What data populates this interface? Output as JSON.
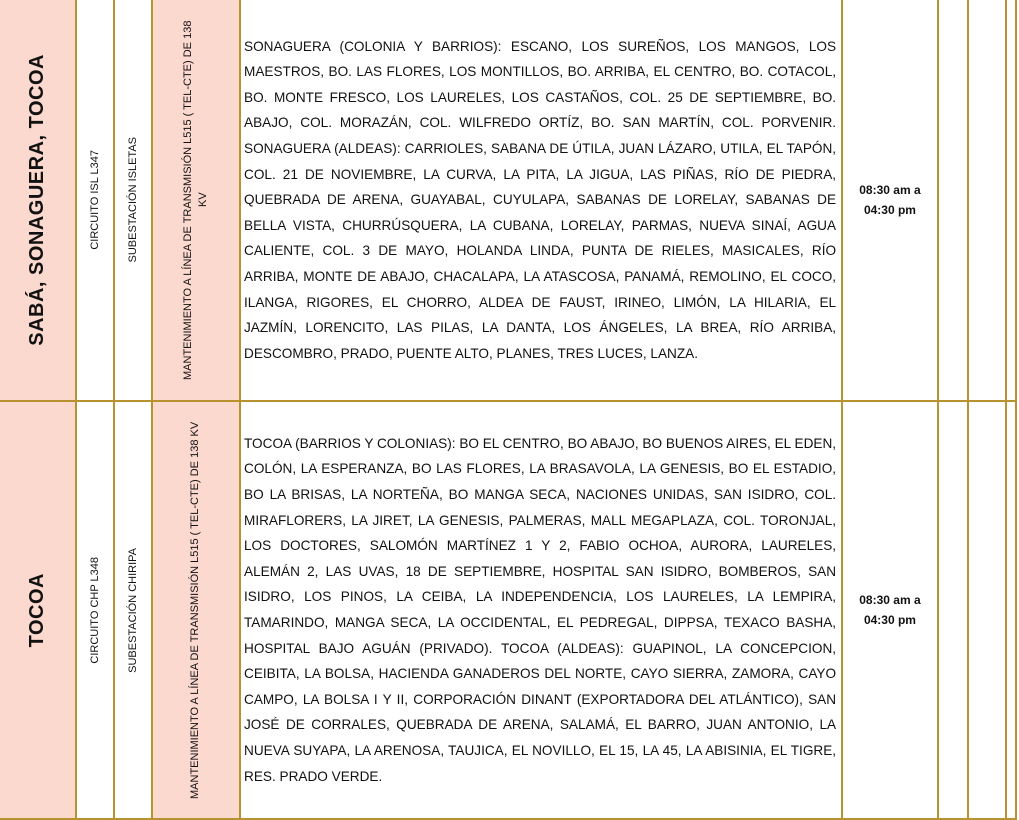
{
  "table": {
    "rows": [
      {
        "region": "SABÁ, SONAGUERA, TOCOA",
        "circuit": "CIRCUITO ISL L347",
        "substation": "SUBESTACIÓN ISLETAS",
        "work": "MANTENIMIENTO A LÍNEA DE TRANSMISIÓN L515 ( TEL-CTE) DE 138 KV",
        "areas": "SONAGUERA (COLONIA Y BARRIOS): ESCANO, LOS SUREÑOS, LOS MANGOS, LOS MAESTROS, BO. LAS FLORES, LOS MONTILLOS, BO. ARRIBA, EL CENTRO, BO. COTACOL, BO. MONTE FRESCO, LOS LAURELES, LOS CASTAÑOS, COL. 25 DE SEPTIEMBRE, BO. ABAJO, COL. MORAZÁN, COL. WILFREDO ORTÍZ, BO. SAN MARTÍN, COL. PORVENIR. SONAGUERA (ALDEAS): CARRIOLES, SABANA DE ÚTILA, JUAN LÁZARO, UTILA, EL TAPÓN, COL. 21 DE NOVIEMBRE, LA CURVA, LA PITA, LA JIGUA, LAS PIÑAS, RÍO DE PIEDRA, QUEBRADA DE ARENA, GUAYABAL, CUYULAPA, SABANAS DE LORELAY, SABANAS DE BELLA VISTA, CHURRÚSQUERA, LA CUBANA, LORELAY, PARMAS, NUEVA SINAÍ, AGUA CALIENTE, COL. 3 DE MAYO, HOLANDA LINDA, PUNTA DE RIELES, MASICALES, RÍO ARRIBA, MONTE DE ABAJO, CHACALAPA, LA ATASCOSA, PANAMÁ, REMOLINO, EL COCO, ILANGA, RIGORES, EL CHORRO, ALDEA DE FAUST, IRINEO, LIMÓN, LA HILARIA, EL JAZMÍN, LORENCITO, LAS PILAS, LA DANTA, LOS ÁNGELES, LA BREA, RÍO ARRIBA, DESCOMBRO, PRADO, PUENTE ALTO, PLANES, TRES LUCES, LANZA.",
        "time": "08:30 am a 04:30 pm"
      },
      {
        "region": "TOCOA",
        "circuit": "CIRCUITO CHP L348",
        "substation": "SUBESTACIÓN CHIRIPA",
        "work": "MANTENIMIENTO A LÍNEA DE TRANSMISIÓN L515 ( TEL-CTE) DE 138 KV",
        "areas": "TOCOA (BARRIOS Y COLONIAS): BO EL CENTRO, BO ABAJO, BO BUENOS AIRES, EL EDEN, COLÓN, LA ESPERANZA, BO LAS FLORES, LA BRASAVOLA, LA GENESIS, BO EL ESTADIO, BO LA BRISAS, LA NORTEÑA, BO MANGA SECA, NACIONES UNIDAS, SAN ISIDRO, COL. MIRAFLORERS, LA JIRET, LA GENESIS, PALMERAS, MALL MEGAPLAZA, COL. TORONJAL, LOS DOCTORES, SALOMÓN MARTÍNEZ 1 Y 2, FABIO OCHOA, AURORA, LAURELES, ALEMÁN 2, LAS UVAS, 18 DE SEPTIEMBRE, HOSPITAL SAN ISIDRO, BOMBEROS, SAN ISIDRO, LOS PINOS, LA CEIBA, LA INDEPENDENCIA, LOS LAURELES, LA LEMPIRA, TAMARINDO, MANGA SECA, LA OCCIDENTAL, EL PEDREGAL, DIPPSA, TEXACO BASHA, HOSPITAL BAJO AGUÁN (PRIVADO). TOCOA (ALDEAS): GUAPINOL, LA CONCEPCION, CEIBITA, LA BOLSA, HACIENDA GANADEROS DEL NORTE, CAYO SIERRA, ZAMORA, CAYO CAMPO, LA BOLSA I Y II, CORPORACIÓN DINANT (EXPORTADORA DEL ATLÁNTICO), SAN JOSÉ DE CORRALES, QUEBRADA DE ARENA, SALAMÁ, EL BARRO, JUAN ANTONIO, LA NUEVA SUYAPA, LA ARENOSA, TAUJICA, EL NOVILLO, EL 15, LA 45, LA ABISINIA, EL TIGRE, RES. PRADO VERDE.",
        "time": "08:30 am a 04:30 pm"
      }
    ]
  }
}
